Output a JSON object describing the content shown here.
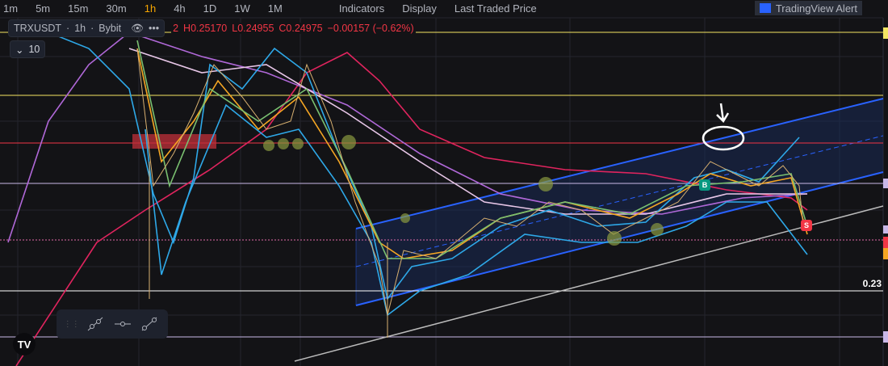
{
  "toolbar": {
    "intervals": [
      "1m",
      "5m",
      "15m",
      "30m",
      "1h",
      "4h",
      "1D",
      "1W",
      "1M"
    ],
    "active_interval": "1h",
    "indicators": "Indicators",
    "display": "Display",
    "price_source": "Last Traded Price",
    "alert": "TradingView Alert"
  },
  "legend": {
    "symbol": "TRXUSDT",
    "interval": "1h",
    "exchange": "Bybit",
    "sep": "·",
    "partial_open": "2",
    "high": "H0.25170",
    "low": "L0.24955",
    "close": "C0.24975",
    "change": "−0.00157 (−0.62%)",
    "indicators_count": "10"
  },
  "price_axis": {
    "visible_label": "0.23"
  },
  "colors": {
    "background": "#131316",
    "channel": "#2962ff",
    "down": "#f23645",
    "up": "#089981",
    "yellow_level": "#f5e663"
  },
  "signals": [
    {
      "label": "B",
      "color": "#089981"
    },
    {
      "label": "S",
      "color": "#f23645"
    }
  ],
  "logo": "TV"
}
